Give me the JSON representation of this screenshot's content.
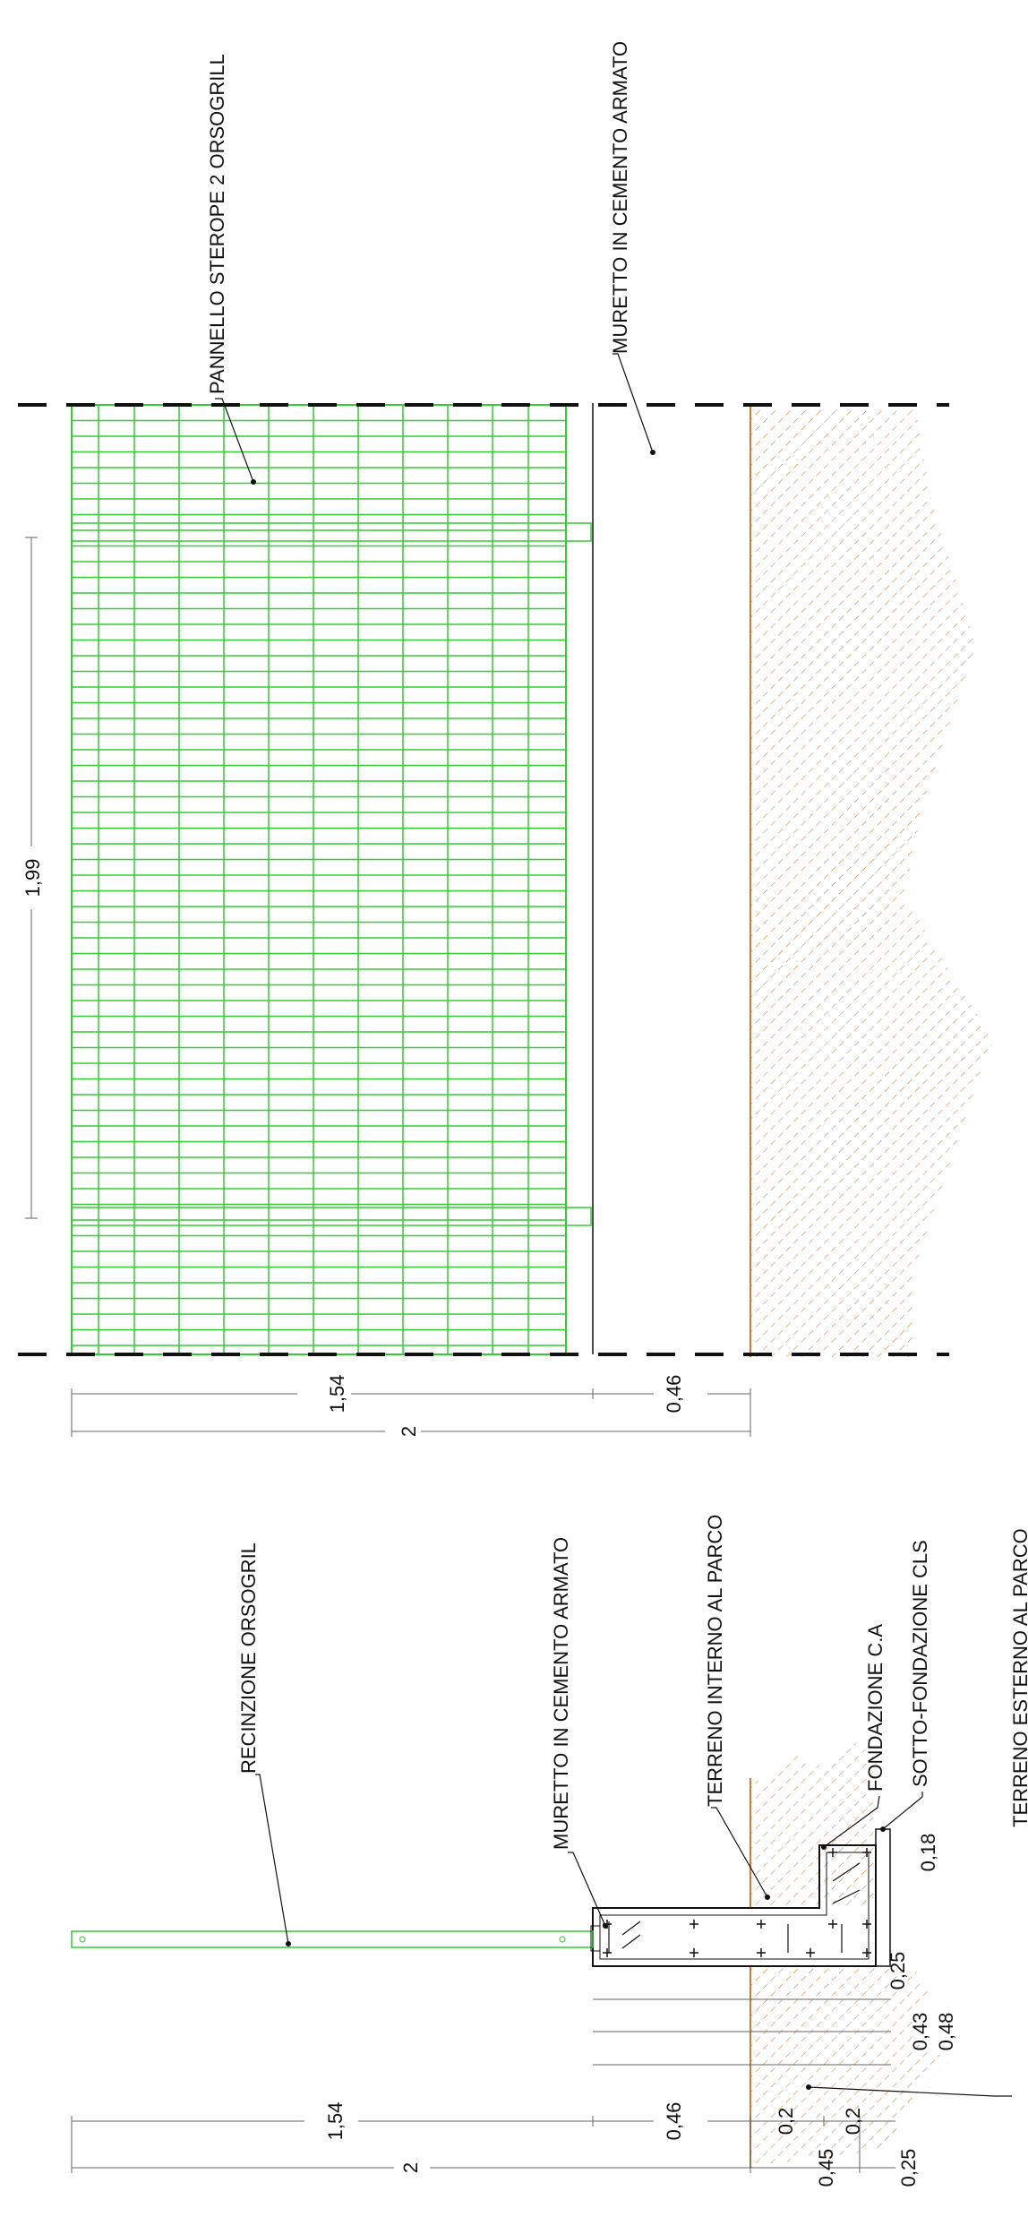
{
  "labels": {
    "panel": "PANNELLO STEROPE 2 ORSOGRILL",
    "wall_top": "MURETTO IN CEMENTO ARMATO",
    "fence": "RECINZIONE ORSOGRIL",
    "wall_section": "MURETTO IN CEMENTO ARMATO",
    "inner_ground": "TERRENO INTERNO AL PARCO",
    "foundation": "FONDAZIONE C.A",
    "sub_foundation": "SOTTO-FONDAZIONE CLS",
    "outer_ground": "TERRENO ESTERNO AL PARCO"
  },
  "dims_elevation": {
    "width": "1,99",
    "panel_height": "1,54",
    "wall_height": "0,46",
    "total_height": "2"
  },
  "dims_section": {
    "panel_height": "1,54",
    "wall_height": "0,46",
    "total_height": "2",
    "a": "0,2",
    "b": "0,2",
    "c": "0,45",
    "d": "0,25",
    "e": "0,25",
    "f": "0,43",
    "g": "0,48",
    "h": "0,18"
  },
  "colors": {
    "mesh": "#33cc33",
    "soil": "#c87d3c",
    "line": "#111111"
  }
}
